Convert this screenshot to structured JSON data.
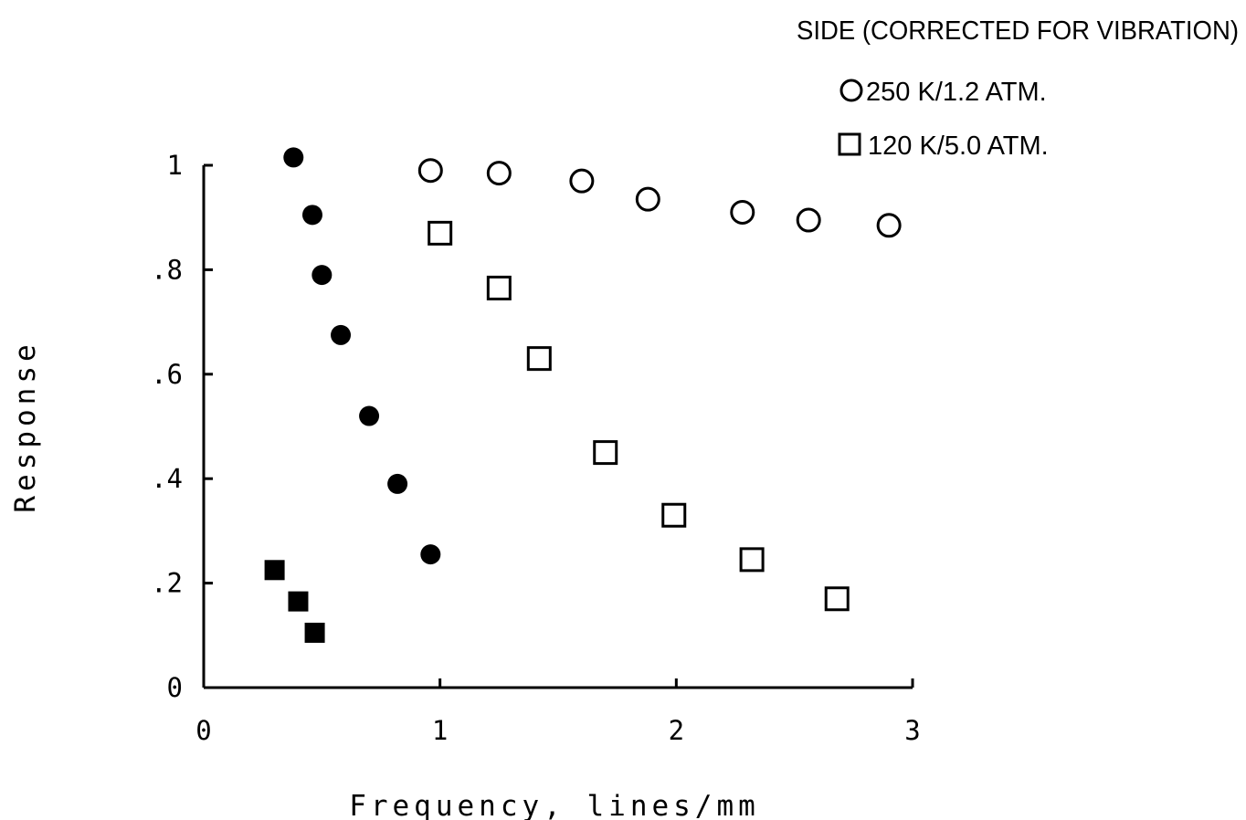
{
  "chart_data": {
    "type": "scatter",
    "xlabel": "Frequency, lines/mm",
    "ylabel": "Response",
    "xlim": [
      0,
      3
    ],
    "ylim": [
      0,
      1
    ],
    "x_ticks": [
      0,
      1,
      2,
      3
    ],
    "x_tick_labels": [
      "0",
      "1",
      "2",
      "3"
    ],
    "y_ticks": [
      0,
      0.2,
      0.4,
      0.6,
      0.8,
      1
    ],
    "y_tick_labels": [
      "0",
      ".2",
      ".4",
      ".6",
      ".8",
      "1"
    ],
    "grid": false,
    "legend": {
      "title": "SIDE (CORRECTED FOR VIBRATION)",
      "placement": "top-right"
    },
    "series": [
      {
        "name": "250 K/1.2 ATM.",
        "marker": "circle-open",
        "in_legend": true,
        "x": [
          0.96,
          1.25,
          1.6,
          1.88,
          2.28,
          2.56,
          2.9
        ],
        "y": [
          0.99,
          0.985,
          0.97,
          0.935,
          0.91,
          0.895,
          0.885
        ]
      },
      {
        "name": "120 K/5.0 ATM.",
        "marker": "square-open",
        "in_legend": true,
        "x": [
          1.0,
          1.25,
          1.42,
          1.7,
          1.99,
          2.32,
          2.68
        ],
        "y": [
          0.87,
          0.765,
          0.63,
          0.45,
          0.33,
          0.245,
          0.17
        ]
      },
      {
        "marker": "circle-filled",
        "in_legend": false,
        "x": [
          0.38,
          0.46,
          0.5,
          0.58,
          0.7,
          0.82,
          0.96
        ],
        "y": [
          1.015,
          0.905,
          0.79,
          0.675,
          0.52,
          0.39,
          0.255
        ]
      },
      {
        "marker": "square-filled",
        "in_legend": false,
        "x": [
          0.3,
          0.4,
          0.47
        ],
        "y": [
          0.225,
          0.165,
          0.105
        ]
      }
    ]
  }
}
